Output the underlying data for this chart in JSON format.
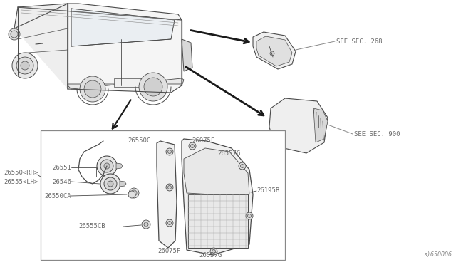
{
  "background_color": "#ffffff",
  "fig_width": 6.4,
  "fig_height": 3.72,
  "dpi": 100,
  "diagram_code": "s)650006",
  "text_color": "#6a6a6a",
  "line_color": "#4a4a4a",
  "light_line": "#888888",
  "labels": {
    "see_sec_268": "SEE SEC. 268",
    "see_sec_900": "SEE SEC. 900",
    "26550C": "26550C",
    "26075F_top": "26075F",
    "26557G_top": "26557G",
    "26551": "26551",
    "26546": "26546",
    "26550CA": "26550CA",
    "26195B": "26195B",
    "26555CB": "26555CB",
    "26075F_bot": "26075F",
    "26557G_bot": "26557G",
    "26550_RH": "26550<RH>",
    "26555_LH": "26555<LH>"
  }
}
